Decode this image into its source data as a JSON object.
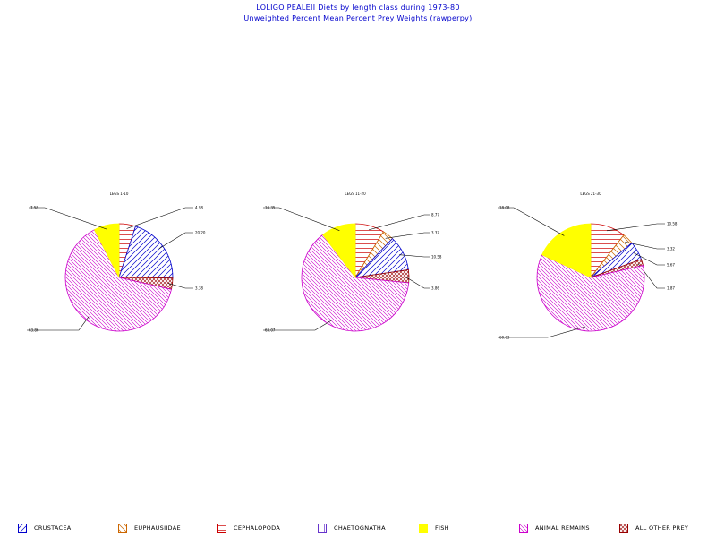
{
  "title": {
    "line1": "LOLIGO PEALEII Diets by length class during 1973-80",
    "line2": "Unweighted Percent Mean Percent Prey  Weights (rawperpy)"
  },
  "legend": [
    {
      "label": "CRUSTACEA",
      "color": "#0000cc",
      "pattern": "crustacea"
    },
    {
      "label": "EUPHAUSIIDAE",
      "color": "#cc6600",
      "pattern": "euphausiidae"
    },
    {
      "label": "CEPHALOPODA",
      "color": "#cc0000",
      "pattern": "cephalopoda"
    },
    {
      "label": "CHAETOGNATHA",
      "color": "#6633cc",
      "pattern": "chaetognatha"
    },
    {
      "label": "FISH",
      "color": "#ffff00",
      "pattern": "fish"
    },
    {
      "label": "ANIMAL REMAINS",
      "color": "#cc00cc",
      "pattern": "animal"
    },
    {
      "label": "ALL OTHER PREY",
      "color": "#990000",
      "pattern": "other"
    }
  ],
  "chart_data": [
    {
      "type": "pie",
      "title": "LEGS 1-10",
      "slices": [
        {
          "category": "CEPHALOPODA",
          "value": 4.98
        },
        {
          "category": "CRUSTACEA",
          "value": 20.2
        },
        {
          "category": "ALL OTHER PREY",
          "value": 3.38
        },
        {
          "category": "ANIMAL REMAINS",
          "value": 63.86
        },
        {
          "category": "FISH",
          "value": 7.58
        }
      ],
      "labels": [
        "4.98",
        "20.20",
        "3.38",
        "63.86",
        "7.58"
      ]
    },
    {
      "type": "pie",
      "title": "LEGS 11-20",
      "slices": [
        {
          "category": "CEPHALOPODA",
          "value": 8.77
        },
        {
          "category": "EUPHAUSIIDAE",
          "value": 3.37
        },
        {
          "category": "CRUSTACEA",
          "value": 10.58
        },
        {
          "category": "ALL OTHER PREY",
          "value": 3.86
        },
        {
          "category": "ANIMAL REMAINS",
          "value": 63.07
        },
        {
          "category": "FISH",
          "value": 10.35
        }
      ],
      "labels": [
        "8.77",
        "3.37",
        "10.58",
        "3.86",
        "63.07",
        "10.35"
      ]
    },
    {
      "type": "pie",
      "title": "LEGS 21-30",
      "slices": [
        {
          "category": "CEPHALOPODA",
          "value": 10.58
        },
        {
          "category": "EUPHAUSIIDAE",
          "value": 3.32
        },
        {
          "category": "CRUSTACEA",
          "value": 5.67
        },
        {
          "category": "ALL OTHER PREY",
          "value": 1.87
        },
        {
          "category": "ANIMAL REMAINS",
          "value": 60.63
        },
        {
          "category": "FISH",
          "value": 18.08
        }
      ],
      "labels": [
        "10.58",
        "3.32",
        "5.67",
        "1.87",
        "60.63",
        "18.08"
      ]
    }
  ]
}
